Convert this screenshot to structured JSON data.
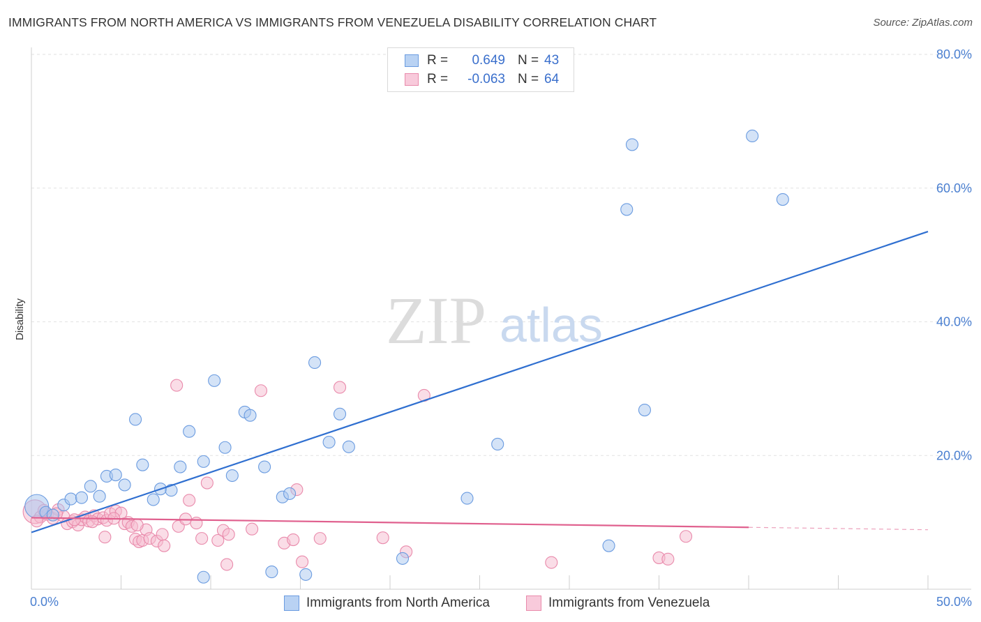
{
  "header": {
    "title": "IMMIGRANTS FROM NORTH AMERICA VS IMMIGRANTS FROM VENEZUELA DISABILITY CORRELATION CHART",
    "source": "Source: ZipAtlas.com"
  },
  "legend": {
    "rows": [
      {
        "r_label": "R =",
        "r_value": "0.649",
        "n_label": "N =",
        "n_value": "43"
      },
      {
        "r_label": "R =",
        "r_value": "-0.063",
        "n_label": "N =",
        "n_value": "64"
      }
    ]
  },
  "bottom_legend": {
    "series1": "Immigrants from North America",
    "series2": "Immigrants from Venezuela"
  },
  "watermark": {
    "zip": "ZIP",
    "atlas": "atlas"
  },
  "colors": {
    "blue_fill": "#aac8f0",
    "blue_stroke": "#6a9be0",
    "blue_line": "#2f6fd0",
    "pink_fill": "#f5bcd0",
    "pink_stroke": "#e98aab",
    "pink_line": "#e0608e",
    "tick": "#4a7fd0",
    "grid": "#e2e2e2"
  },
  "chart_data": {
    "type": "scatter",
    "title": "IMMIGRANTS FROM NORTH AMERICA VS IMMIGRANTS FROM VENEZUELA DISABILITY CORRELATION CHART",
    "xlabel": "",
    "ylabel": "Disability",
    "xlim": [
      0,
      50
    ],
    "ylim": [
      0,
      80
    ],
    "x_tick_labels": [
      "0.0%",
      "50.0%"
    ],
    "y_ticks": [
      20,
      40,
      60,
      80
    ],
    "y_tick_labels": [
      "20.0%",
      "40.0%",
      "60.0%",
      "80.0%"
    ],
    "series": [
      {
        "name": "Immigrants from North America",
        "color": "blue",
        "r": 0.649,
        "n": 43,
        "trend": {
          "x": [
            0,
            50
          ],
          "y": [
            8.5,
            53.5
          ],
          "dashed_from": null
        },
        "points": [
          {
            "x": 0.3,
            "y": 12.4,
            "big": true
          },
          {
            "x": 0.8,
            "y": 11.5
          },
          {
            "x": 1.2,
            "y": 11.1
          },
          {
            "x": 1.8,
            "y": 12.6
          },
          {
            "x": 2.2,
            "y": 13.5
          },
          {
            "x": 2.8,
            "y": 13.7
          },
          {
            "x": 3.3,
            "y": 15.4
          },
          {
            "x": 3.8,
            "y": 13.9
          },
          {
            "x": 4.2,
            "y": 16.9
          },
          {
            "x": 4.7,
            "y": 17.1
          },
          {
            "x": 5.2,
            "y": 15.6
          },
          {
            "x": 5.8,
            "y": 25.4
          },
          {
            "x": 6.2,
            "y": 18.6
          },
          {
            "x": 6.8,
            "y": 13.4
          },
          {
            "x": 7.2,
            "y": 15.0
          },
          {
            "x": 7.8,
            "y": 14.8
          },
          {
            "x": 8.3,
            "y": 18.3
          },
          {
            "x": 8.8,
            "y": 23.6
          },
          {
            "x": 9.6,
            "y": 19.1
          },
          {
            "x": 10.2,
            "y": 31.2
          },
          {
            "x": 10.8,
            "y": 21.2
          },
          {
            "x": 11.2,
            "y": 17.0
          },
          {
            "x": 11.9,
            "y": 26.5
          },
          {
            "x": 12.2,
            "y": 26.0
          },
          {
            "x": 13.0,
            "y": 18.3
          },
          {
            "x": 14.0,
            "y": 13.8
          },
          {
            "x": 14.4,
            "y": 14.3
          },
          {
            "x": 15.8,
            "y": 33.9
          },
          {
            "x": 16.6,
            "y": 22.0
          },
          {
            "x": 17.2,
            "y": 26.2
          },
          {
            "x": 17.7,
            "y": 21.3
          },
          {
            "x": 9.6,
            "y": 1.8
          },
          {
            "x": 13.4,
            "y": 2.6
          },
          {
            "x": 15.3,
            "y": 2.2
          },
          {
            "x": 20.7,
            "y": 4.6
          },
          {
            "x": 24.3,
            "y": 13.6
          },
          {
            "x": 26.0,
            "y": 21.7
          },
          {
            "x": 32.2,
            "y": 6.5
          },
          {
            "x": 33.2,
            "y": 56.8
          },
          {
            "x": 33.5,
            "y": 66.5
          },
          {
            "x": 34.2,
            "y": 26.8
          },
          {
            "x": 40.2,
            "y": 67.8
          },
          {
            "x": 41.9,
            "y": 58.3
          }
        ]
      },
      {
        "name": "Immigrants from Venezuela",
        "color": "pink",
        "r": -0.063,
        "n": 64,
        "trend": {
          "x": [
            0,
            50
          ],
          "y": [
            10.7,
            8.9
          ],
          "dashed_from": 40
        },
        "points": [
          {
            "x": 0.2,
            "y": 11.6,
            "big": true
          },
          {
            "x": 0.5,
            "y": 10.8
          },
          {
            "x": 0.9,
            "y": 11.2
          },
          {
            "x": 1.2,
            "y": 10.6
          },
          {
            "x": 1.5,
            "y": 11.9
          },
          {
            "x": 1.8,
            "y": 10.9
          },
          {
            "x": 2.0,
            "y": 9.8
          },
          {
            "x": 2.3,
            "y": 10.1
          },
          {
            "x": 2.6,
            "y": 9.6
          },
          {
            "x": 2.8,
            "y": 10.4
          },
          {
            "x": 3.0,
            "y": 10.8
          },
          {
            "x": 3.2,
            "y": 10.2
          },
          {
            "x": 3.5,
            "y": 11.0
          },
          {
            "x": 3.7,
            "y": 10.5
          },
          {
            "x": 4.0,
            "y": 10.7
          },
          {
            "x": 4.2,
            "y": 10.3
          },
          {
            "x": 4.4,
            "y": 11.3
          },
          {
            "x": 4.7,
            "y": 11.7
          },
          {
            "x": 5.0,
            "y": 11.4
          },
          {
            "x": 5.2,
            "y": 9.8
          },
          {
            "x": 5.4,
            "y": 10.0
          },
          {
            "x": 5.6,
            "y": 9.4
          },
          {
            "x": 4.1,
            "y": 7.8
          },
          {
            "x": 5.8,
            "y": 7.5
          },
          {
            "x": 6.0,
            "y": 7.1
          },
          {
            "x": 6.2,
            "y": 7.3
          },
          {
            "x": 6.4,
            "y": 8.9
          },
          {
            "x": 6.6,
            "y": 7.6
          },
          {
            "x": 7.0,
            "y": 7.2
          },
          {
            "x": 7.3,
            "y": 8.2
          },
          {
            "x": 7.4,
            "y": 6.5
          },
          {
            "x": 8.2,
            "y": 9.4
          },
          {
            "x": 8.6,
            "y": 10.5
          },
          {
            "x": 9.2,
            "y": 9.9
          },
          {
            "x": 9.5,
            "y": 7.6
          },
          {
            "x": 9.8,
            "y": 15.9
          },
          {
            "x": 10.4,
            "y": 7.3
          },
          {
            "x": 10.7,
            "y": 8.8
          },
          {
            "x": 11.0,
            "y": 8.2
          },
          {
            "x": 8.8,
            "y": 13.3
          },
          {
            "x": 8.1,
            "y": 30.5
          },
          {
            "x": 12.3,
            "y": 9.0
          },
          {
            "x": 10.9,
            "y": 3.7
          },
          {
            "x": 12.8,
            "y": 29.7
          },
          {
            "x": 14.1,
            "y": 6.9
          },
          {
            "x": 14.6,
            "y": 7.4
          },
          {
            "x": 14.8,
            "y": 14.9
          },
          {
            "x": 15.1,
            "y": 4.1
          },
          {
            "x": 16.1,
            "y": 7.6
          },
          {
            "x": 17.2,
            "y": 30.2
          },
          {
            "x": 19.6,
            "y": 7.7
          },
          {
            "x": 20.9,
            "y": 5.6
          },
          {
            "x": 21.9,
            "y": 29.0
          },
          {
            "x": 29.0,
            "y": 4.0
          },
          {
            "x": 35.0,
            "y": 4.7
          },
          {
            "x": 35.5,
            "y": 4.5
          },
          {
            "x": 36.5,
            "y": 7.9
          },
          {
            "x": 0.3,
            "y": 10.2
          },
          {
            "x": 0.7,
            "y": 11.8
          },
          {
            "x": 1.4,
            "y": 11.3
          },
          {
            "x": 2.4,
            "y": 10.4
          },
          {
            "x": 3.4,
            "y": 10.1
          },
          {
            "x": 4.6,
            "y": 10.6
          },
          {
            "x": 5.9,
            "y": 9.6
          }
        ]
      }
    ]
  }
}
